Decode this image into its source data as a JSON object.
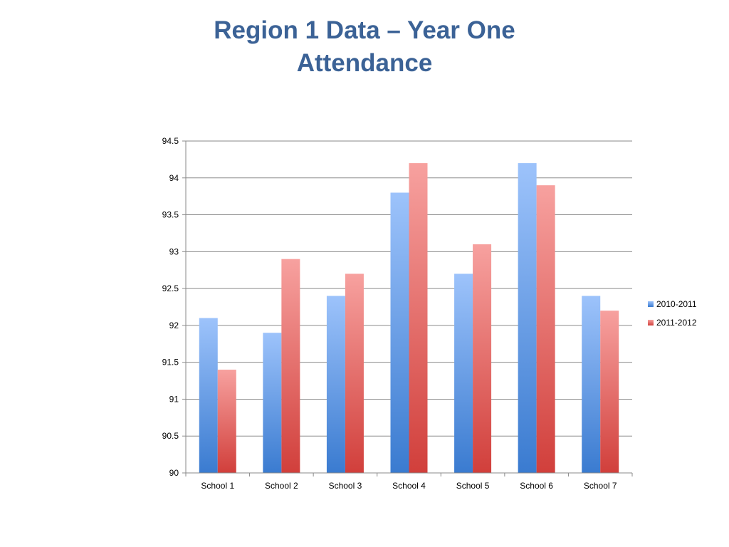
{
  "slide": {
    "title_line1": "Region 1 Data – Year One",
    "title_line2": "Attendance"
  },
  "colors": {
    "title": "#3b6296",
    "series_2010_top": "#9dc3fb",
    "series_2010_bottom": "#3a7bd0",
    "series_2011_top": "#f7a19f",
    "series_2011_bottom": "#d13f3b",
    "gridline": "#8a8a8a"
  },
  "chart_data": {
    "type": "bar",
    "categories": [
      "School 1",
      "School 2",
      "School 3",
      "School 4",
      "School 5",
      "School 6",
      "School 7"
    ],
    "series": [
      {
        "name": "2010-2011",
        "values": [
          92.1,
          91.9,
          92.4,
          93.8,
          92.7,
          94.2,
          92.4
        ]
      },
      {
        "name": "2011-2012",
        "values": [
          91.4,
          92.9,
          92.7,
          94.2,
          93.1,
          93.9,
          92.2
        ]
      }
    ],
    "yticks": [
      "90",
      "90.5",
      "91",
      "91.5",
      "92",
      "92.5",
      "93",
      "93.5",
      "94",
      "94.5"
    ],
    "ylim": [
      90,
      94.5
    ],
    "ystep": 0.5,
    "grid": true,
    "legend_position": "right"
  }
}
